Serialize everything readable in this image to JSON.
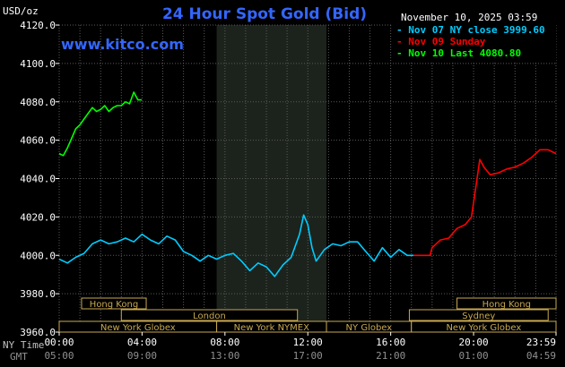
{
  "colors": {
    "background": "#000000",
    "plot_bg": "#000000",
    "grid": "#5a5a5a",
    "night_band": "#1c231c",
    "axis_text": "#ffffff",
    "title": "#3366ff",
    "site": "#3366ff",
    "ny_close": "#00ccff",
    "sunday": "#ff0000",
    "last": "#00ff00",
    "session_bg": "#000000",
    "session_border": "#c8a850",
    "session_text": "#c8a850",
    "footer_label": "#c0c0c0",
    "footer_gmt": "#909090"
  },
  "header": {
    "unit_label": "USD/oz",
    "title": "24 Hour Spot Gold (Bid)",
    "timestamp": "November 10, 2025 03:59",
    "site": "www.kitco.com"
  },
  "legend": [
    {
      "text": "Nov 07 NY close 3999.60",
      "color": "#00ccff"
    },
    {
      "text": "Nov 09 Sunday",
      "color": "#ff0000"
    },
    {
      "text": "Nov 10 Last 4080.80",
      "color": "#00ff00"
    }
  ],
  "sessions": [
    {
      "label": "Hong Kong",
      "start": 1.08,
      "end": 4.2
    },
    {
      "label": "London",
      "start": 3.0,
      "end": 11.5
    },
    {
      "label": "New York Globex",
      "start": 0.0,
      "end": 7.6
    },
    {
      "label": "New York NYMEX",
      "start": 7.6,
      "end": 12.9
    },
    {
      "label": "NY Globex",
      "start": 12.9,
      "end": 17.0
    },
    {
      "label": "Hong Kong",
      "start": 19.2,
      "end": 23.99
    },
    {
      "label": "Sydney",
      "start": 16.9,
      "end": 23.6
    },
    {
      "label": "New York Globex",
      "start": 17.0,
      "end": 23.99
    }
  ],
  "footer": {
    "ny_label": "NY Time",
    "gmt_label": "GMT",
    "gmt_ticks": [
      "05:00",
      "09:00",
      "13:00",
      "17:00",
      "21:00",
      "01:00",
      "04:59"
    ]
  },
  "chart_data": {
    "type": "line",
    "title": "24 Hour Spot Gold (Bid)",
    "ylabel": "USD/oz",
    "xlim": [
      0,
      23.98
    ],
    "ylim": [
      3960,
      4120
    ],
    "x_tick_labels": [
      "00:00",
      "04:00",
      "08:00",
      "12:00",
      "16:00",
      "20:00",
      "23:59"
    ],
    "x_tick_values": [
      0,
      4,
      8,
      12,
      16,
      20,
      23.98
    ],
    "y_ticks": [
      3960,
      3980,
      4000,
      4020,
      4040,
      4060,
      4080,
      4100,
      4120
    ],
    "y_tick_labels": [
      "3960.0",
      "3980.0",
      "4000.0",
      "4020.0",
      "4040.0",
      "4060.0",
      "4080.0",
      "4100.0",
      "4120.0"
    ],
    "grid": true,
    "shaded_range": [
      7.6,
      12.9
    ],
    "series": [
      {
        "name": "Nov 07 NY close 3999.60",
        "color": "#00ccff",
        "x": [
          0.0,
          0.4,
          0.8,
          1.2,
          1.6,
          2.0,
          2.4,
          2.8,
          3.2,
          3.6,
          4.0,
          4.4,
          4.8,
          5.2,
          5.6,
          6.0,
          6.4,
          6.8,
          7.2,
          7.6,
          8.0,
          8.4,
          8.8,
          9.2,
          9.6,
          10.0,
          10.4,
          10.8,
          11.2,
          11.6,
          11.8,
          12.0,
          12.2,
          12.4,
          12.6,
          12.8,
          13.2,
          13.6,
          14.0,
          14.4,
          14.8,
          15.2,
          15.6,
          16.0,
          16.4,
          16.8,
          17.1
        ],
        "values": [
          3998,
          3996,
          3999,
          4001,
          4006,
          4008,
          4006,
          4007,
          4009,
          4007,
          4011,
          4008,
          4006,
          4010,
          4008,
          4002,
          4000,
          3997,
          4000,
          3998,
          4000,
          4001,
          3997,
          3992,
          3996,
          3994,
          3989,
          3995,
          3999,
          4011,
          4021,
          4016,
          4004,
          3997,
          4000,
          4003,
          4006,
          4005,
          4007,
          4007,
          4002,
          3997,
          4004,
          3999,
          4003,
          4000,
          4000
        ]
      },
      {
        "name": "Nov 09 Sunday",
        "color": "#ff0000",
        "x": [
          17.1,
          17.9,
          18.0,
          18.4,
          18.8,
          19.2,
          19.6,
          19.9,
          20.1,
          20.3,
          20.5,
          20.8,
          21.2,
          21.6,
          22.0,
          22.4,
          22.8,
          23.2,
          23.6,
          23.98
        ],
        "values": [
          4000,
          4000,
          4004,
          4008,
          4009,
          4014,
          4016,
          4020,
          4035,
          4050,
          4046,
          4042,
          4043,
          4045,
          4046,
          4048,
          4051,
          4055,
          4055,
          4053
        ]
      },
      {
        "name": "Nov 10 Last 4080.80",
        "color": "#00ff00",
        "x": [
          0.0,
          0.2,
          0.4,
          0.6,
          0.8,
          1.0,
          1.2,
          1.4,
          1.6,
          1.8,
          2.0,
          2.2,
          2.4,
          2.6,
          2.8,
          3.0,
          3.2,
          3.4,
          3.6,
          3.8,
          3.98
        ],
        "values": [
          4053,
          4052,
          4056,
          4061,
          4066,
          4068,
          4071,
          4074,
          4077,
          4075,
          4076,
          4078,
          4075,
          4077,
          4078,
          4078,
          4080,
          4079,
          4085,
          4081,
          4081
        ]
      }
    ]
  }
}
